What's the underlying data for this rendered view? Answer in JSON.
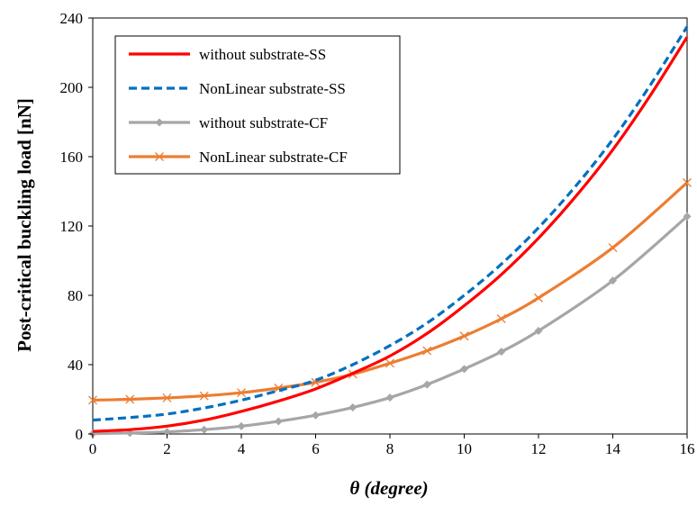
{
  "chart_data": {
    "type": "line",
    "xlabel": "θ (degree)",
    "ylabel": "Post-critical buckling load [nN]",
    "xlim": [
      0,
      16
    ],
    "ylim": [
      0,
      240
    ],
    "xticks": [
      0,
      2,
      4,
      6,
      8,
      10,
      12,
      14,
      16
    ],
    "yticks": [
      0,
      40,
      80,
      120,
      160,
      200,
      240
    ],
    "grid": false,
    "legend_position": "top-left",
    "series": [
      {
        "name": "without substrate-SS",
        "color": "#ff0000",
        "line_style": "solid",
        "marker": "none",
        "x": [
          0,
          1,
          2,
          3,
          4,
          5,
          6,
          7,
          8,
          9,
          10,
          11,
          12,
          13,
          14,
          15,
          16
        ],
        "values": [
          1.5,
          2.5,
          4.5,
          8,
          13,
          19,
          26,
          35,
          45,
          58,
          74,
          92,
          113,
          137,
          164,
          195,
          229
        ]
      },
      {
        "name": "NonLinear substrate-SS",
        "color": "#0070c0",
        "line_style": "dashed",
        "marker": "none",
        "x": [
          0,
          1,
          2,
          3,
          4,
          5,
          6,
          7,
          8,
          9,
          10,
          11,
          12,
          13,
          14,
          15,
          16
        ],
        "values": [
          8,
          9.5,
          11.5,
          15,
          19.5,
          25,
          31,
          40,
          51,
          64,
          80,
          98,
          119,
          143,
          170,
          201,
          235
        ]
      },
      {
        "name": "without substrate-CF",
        "color": "#a6a6a6",
        "line_style": "solid",
        "marker": "diamond",
        "x": [
          0,
          1,
          2,
          3,
          4,
          5,
          6,
          7,
          8,
          9,
          10,
          11,
          12,
          14,
          16
        ],
        "values": [
          0.2,
          0.6,
          1.2,
          2.5,
          4.5,
          7.3,
          10.8,
          15.3,
          21,
          28.5,
          37.5,
          47.5,
          59.5,
          88.5,
          125.5
        ]
      },
      {
        "name": "NonLinear substrate-CF",
        "color": "#ed7d31",
        "line_style": "solid",
        "marker": "x",
        "x": [
          0,
          1,
          2,
          3,
          4,
          5,
          6,
          7,
          8,
          9,
          10,
          11,
          12,
          14,
          16
        ],
        "values": [
          19.5,
          20,
          20.8,
          22,
          23.8,
          26.5,
          29.8,
          34.5,
          40.8,
          48,
          56.5,
          66.5,
          78.5,
          107.5,
          145
        ]
      }
    ]
  }
}
